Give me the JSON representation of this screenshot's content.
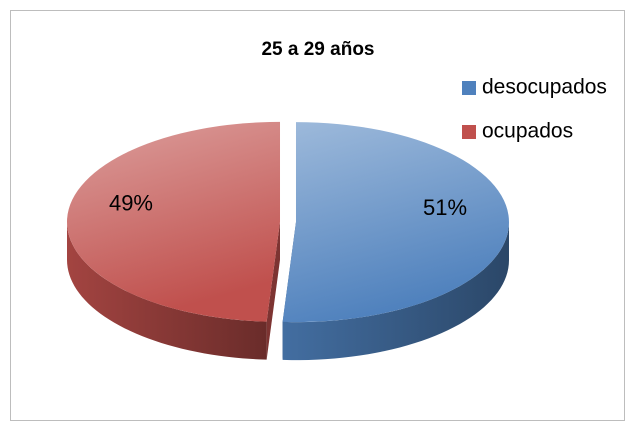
{
  "chart_data": {
    "type": "pie",
    "title": "25 a 29 años",
    "categories": [
      "desocupados",
      "ocupados"
    ],
    "values": [
      51,
      49
    ],
    "value_labels": [
      "51%",
      "49%"
    ],
    "colors": [
      "#4f81bd",
      "#c0504d"
    ],
    "legend": "right"
  }
}
